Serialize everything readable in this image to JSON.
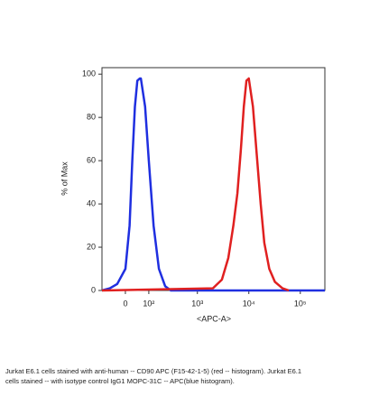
{
  "chart_data": {
    "type": "histogram-overlay",
    "ylabel": "% of Max",
    "xlabel": "<APC-A>",
    "xscale": "arcsinh",
    "xlim": [
      -100,
      300000
    ],
    "xticks": [
      0,
      {
        "value": 100,
        "label": "10²"
      },
      {
        "value": 1000,
        "label": "10³"
      },
      {
        "value": 10000,
        "label": "10⁴"
      },
      {
        "value": 100000,
        "label": "10⁵"
      }
    ],
    "ylim": [
      0,
      103
    ],
    "yticks": [
      0,
      20,
      40,
      60,
      80,
      100
    ],
    "series": [
      {
        "color": "#1f2fe0",
        "x": [
          -100,
          -60,
          -30,
          0,
          15,
          25,
          35,
          45,
          55,
          60,
          80,
          100,
          130,
          170,
          230,
          300,
          300000
        ],
        "values": [
          0,
          1,
          3,
          10,
          30,
          60,
          85,
          97,
          98,
          98,
          85,
          60,
          30,
          10,
          2,
          0,
          0
        ]
      },
      {
        "color": "#e02020",
        "x": [
          -100,
          2000,
          3000,
          4000,
          5000,
          6000,
          7000,
          8000,
          9000,
          10000,
          12000,
          14000,
          17000,
          20000,
          25000,
          32000,
          45000,
          60000
        ],
        "values": [
          0,
          1,
          5,
          15,
          30,
          45,
          65,
          85,
          97,
          98,
          85,
          65,
          40,
          22,
          10,
          4,
          1,
          0
        ]
      }
    ],
    "caption": [
      "Jurkat E6.1 cells stained with anti-human -- CD90 APC (F15-42-1-5) (red -- histogram). Jurkat E6.1",
      "cells stained -- with isotype control IgG1 MOPC-31C -- APC(blue histogram)."
    ]
  }
}
